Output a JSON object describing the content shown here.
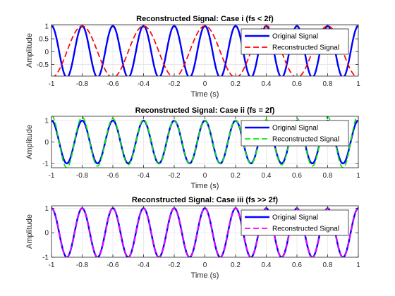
{
  "chart_data": [
    {
      "type": "line",
      "title": "Reconstructed Signal: Case i (fs < 2f)",
      "xlabel": "Time (s)",
      "ylabel": "Amplitude",
      "xlim": [
        -1,
        1
      ],
      "ylim": [
        -0.95,
        1.05
      ],
      "xticks": [
        -1,
        -0.8,
        -0.6,
        -0.4,
        -0.2,
        0,
        0.2,
        0.4,
        0.6,
        0.8,
        1
      ],
      "xtick_labels": [
        "-1",
        "-0.8",
        "-0.6",
        "-0.4",
        "-0.2",
        "0",
        "0.2",
        "0.4",
        "0.6",
        "0.8",
        "1"
      ],
      "yticks": [
        -0.5,
        0,
        0.5,
        1
      ],
      "ytick_labels": [
        "-0.5",
        "0",
        "0.5",
        "1"
      ],
      "grid": true,
      "legend_position": "top-right",
      "series": [
        {
          "name": "Original Signal",
          "color": "#0000ff",
          "style": "solid",
          "function": "cos",
          "amplitude": 1,
          "frequency_hz": 5,
          "phase": 0
        },
        {
          "name": "Reconstructed Signal",
          "color": "#ff0000",
          "style": "dashed",
          "function": "cos",
          "amplitude": 1,
          "frequency_hz": 2.5,
          "phase": 0
        }
      ]
    },
    {
      "type": "line",
      "title": "Reconstructed Signal: Case ii (fs = 2f)",
      "xlabel": "Time (s)",
      "ylabel": "Amplitude",
      "xlim": [
        -1,
        1
      ],
      "ylim": [
        -1.2,
        1.2
      ],
      "xticks": [
        -1,
        -0.8,
        -0.6,
        -0.4,
        -0.2,
        0,
        0.2,
        0.4,
        0.6,
        0.8,
        1
      ],
      "xtick_labels": [
        "-1",
        "-0.8",
        "-0.6",
        "-0.4",
        "-0.2",
        "0",
        "0.2",
        "0.4",
        "0.6",
        "0.8",
        "1"
      ],
      "yticks": [
        -1,
        0,
        1
      ],
      "ytick_labels": [
        "-1",
        "0",
        "1"
      ],
      "grid": true,
      "legend_position": "top-right",
      "series": [
        {
          "name": "Original Signal",
          "color": "#0000ff",
          "style": "solid",
          "function": "cos",
          "amplitude": 1,
          "frequency_hz": 5,
          "phase": 0
        },
        {
          "name": "Reconstructed Signal",
          "color": "#00ee00",
          "style": "dashed",
          "function": "cos_envelope",
          "amplitude": 1,
          "frequency_hz": 5,
          "phase": 0
        }
      ]
    },
    {
      "type": "line",
      "title": "Reconstructed Signal: Case iii (fs >> 2f)",
      "xlabel": "Time (s)",
      "ylabel": "Amplitude",
      "xlim": [
        -1,
        1
      ],
      "ylim": [
        -1,
        1.1
      ],
      "xticks": [
        -1,
        -0.8,
        -0.6,
        -0.4,
        -0.2,
        0,
        0.2,
        0.4,
        0.6,
        0.8,
        1
      ],
      "xtick_labels": [
        "-1",
        "-0.8",
        "-0.6",
        "-0.4",
        "-0.2",
        "0",
        "0.2",
        "0.4",
        "0.6",
        "0.8",
        "1"
      ],
      "yticks": [
        -1,
        0,
        1
      ],
      "ytick_labels": [
        "-1",
        "0",
        "1"
      ],
      "grid": true,
      "legend_position": "top-right",
      "series": [
        {
          "name": "Original Signal",
          "color": "#0000ff",
          "style": "solid",
          "function": "cos",
          "amplitude": 1,
          "frequency_hz": 5,
          "phase": 0
        },
        {
          "name": "Reconstructed Signal",
          "color": "#ff00ff",
          "style": "dashed",
          "function": "cos",
          "amplitude": 1,
          "frequency_hz": 5,
          "phase": 0
        }
      ]
    }
  ]
}
